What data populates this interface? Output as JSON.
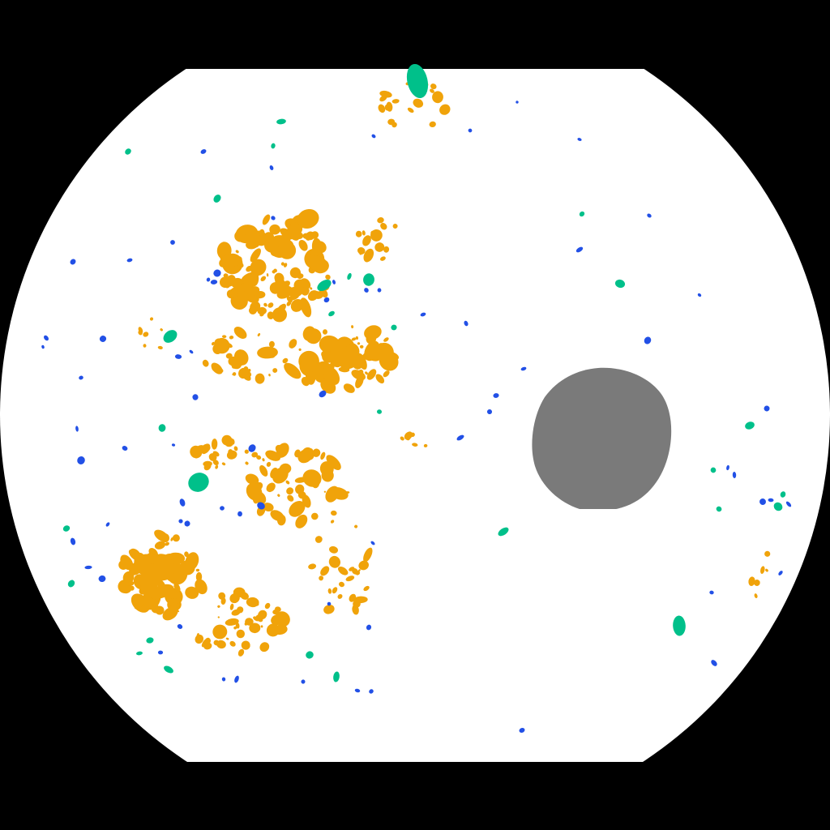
{
  "image": {
    "kind": "fundus-lesion-segmentation-mask",
    "colors": {
      "background": "#000000",
      "field": "#ffffff",
      "optic_disc": "#7a7a7a",
      "hard_exudates": "#f0a30a",
      "hemorrhages": "#00c08a",
      "microaneurysms": "#2250e6"
    }
  }
}
